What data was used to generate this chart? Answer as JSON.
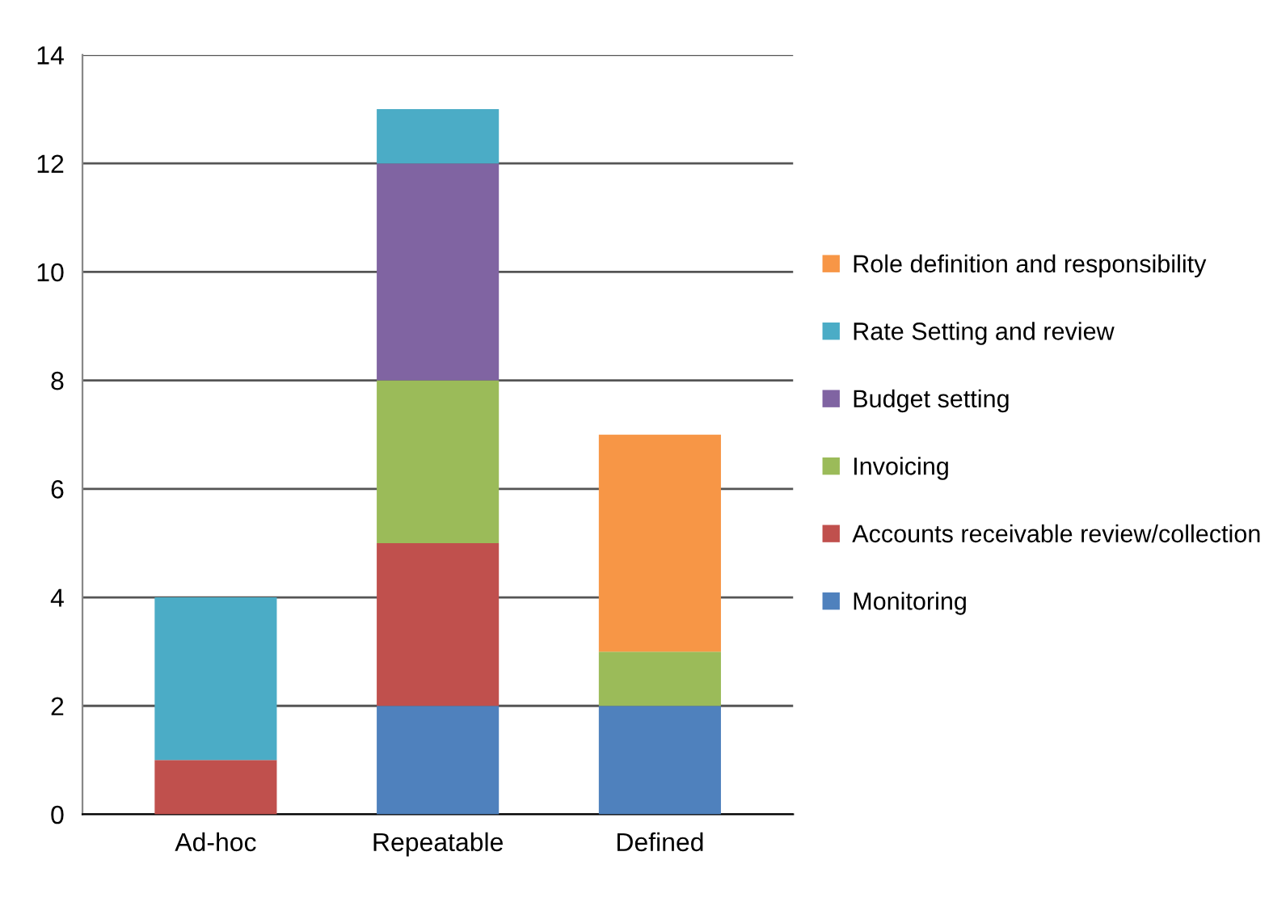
{
  "chart_data": {
    "type": "bar",
    "stacked": true,
    "categories": [
      "Ad-hoc",
      "Repeatable",
      "Defined"
    ],
    "series": [
      {
        "name": "Monitoring",
        "color": "#4f81bd",
        "values": [
          0,
          2,
          2
        ]
      },
      {
        "name": "Accounts receivable review/collection",
        "color": "#c0504d",
        "values": [
          1,
          3,
          0
        ]
      },
      {
        "name": "Invoicing",
        "color": "#9bbb59",
        "values": [
          0,
          3,
          1
        ]
      },
      {
        "name": "Budget setting",
        "color": "#8064a2",
        "values": [
          0,
          4,
          0
        ]
      },
      {
        "name": "Rate Setting and review",
        "color": "#4bacc6",
        "values": [
          3,
          1,
          0
        ]
      },
      {
        "name": "Role definition and responsibility",
        "color": "#f79646",
        "values": [
          0,
          0,
          4
        ]
      }
    ],
    "ylim": [
      0,
      14
    ],
    "yticks": [
      0,
      2,
      4,
      6,
      8,
      10,
      12,
      14
    ],
    "grid": "y",
    "legend": "right"
  }
}
